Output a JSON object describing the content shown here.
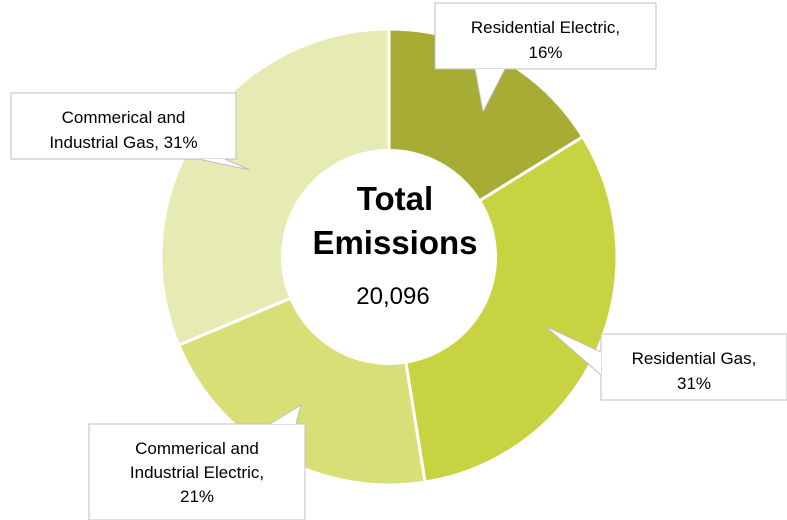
{
  "chart_data": {
    "type": "pie",
    "subtype": "donut",
    "center_title": [
      "Total",
      "Emissions"
    ],
    "center_value": "20,096",
    "segments": [
      {
        "label": "Residential Electric",
        "percent": 16,
        "label_text": [
          "Residential Electric,",
          "16%"
        ],
        "color": "#a7ad34"
      },
      {
        "label": "Residential Gas",
        "percent": 31,
        "label_text": [
          "Residential Gas,",
          "31%"
        ],
        "color": "#c7d340"
      },
      {
        "label": "Commerical and Industrial Electric",
        "percent": 21,
        "label_text": [
          "Commerical and",
          "Industrial Electric,",
          "21%"
        ],
        "color": "#d8df77"
      },
      {
        "label": "Commerical and Industrial Gas",
        "percent": 31,
        "label_text": [
          "Commerical and",
          "Industrial Gas, 31%"
        ],
        "color": "#e6ebb3"
      }
    ],
    "legend": "none",
    "data_labels": "callouts"
  }
}
